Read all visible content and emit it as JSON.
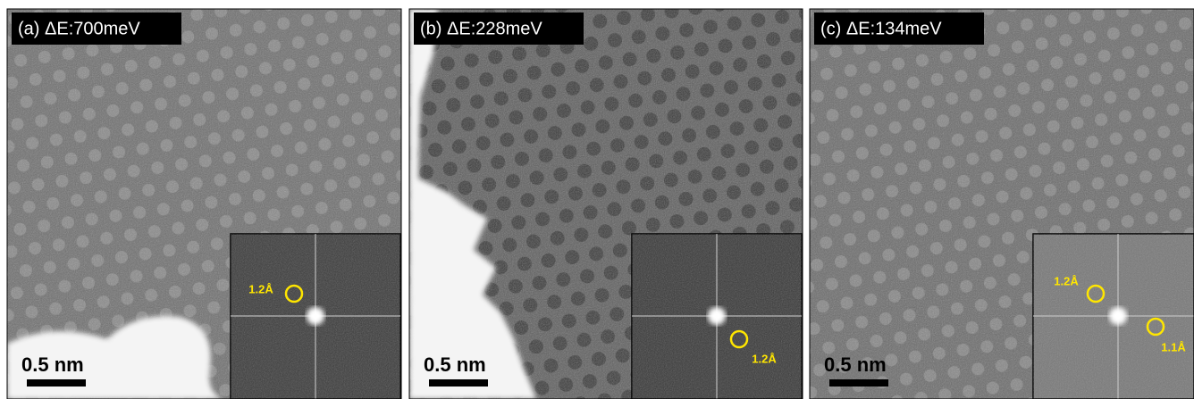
{
  "panels": [
    {
      "label": "(a) ΔE:700meV",
      "scale_bar": "0.5 nm",
      "inset_annotations": [
        "1.2Å"
      ]
    },
    {
      "label": "(b) ΔE:228meV",
      "scale_bar": "0.5 nm",
      "inset_annotations": [
        "1.2Å"
      ]
    },
    {
      "label": "(c) ΔE:134meV",
      "scale_bar": "0.5 nm",
      "inset_annotations": [
        "1.2Å",
        "1.1Å"
      ]
    }
  ]
}
